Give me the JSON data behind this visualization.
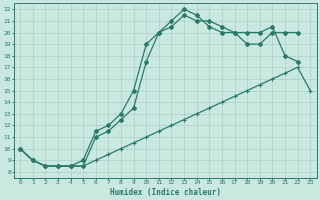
{
  "xlabel": "Humidex (Indice chaleur)",
  "background_color": "#c8e8e0",
  "grid_color": "#b0d4cc",
  "line_color": "#2a7a6a",
  "xlim": [
    -0.5,
    23.5
  ],
  "ylim": [
    7.5,
    22.5
  ],
  "xticks": [
    0,
    1,
    2,
    3,
    4,
    5,
    6,
    7,
    8,
    9,
    10,
    11,
    12,
    13,
    14,
    15,
    16,
    17,
    18,
    19,
    20,
    21,
    22,
    23
  ],
  "yticks": [
    8,
    9,
    10,
    11,
    12,
    13,
    14,
    15,
    16,
    17,
    18,
    19,
    20,
    21,
    22
  ],
  "line1_x": [
    0,
    1,
    2,
    3,
    4,
    5,
    6,
    7,
    8,
    9,
    10,
    11,
    12,
    13,
    14,
    15,
    16,
    17,
    18,
    19,
    20,
    21,
    22,
    23
  ],
  "line1_y": [
    10,
    9,
    8.5,
    8.5,
    8.5,
    8.5,
    9,
    9.5,
    10,
    10.5,
    11,
    11.5,
    12,
    12.5,
    13,
    13.5,
    14,
    14.5,
    15,
    15.5,
    16,
    16.5,
    17,
    15
  ],
  "line2_x": [
    0,
    1,
    2,
    3,
    4,
    5,
    6,
    7,
    8,
    9,
    10,
    11,
    12,
    13,
    14,
    15,
    16,
    17,
    18,
    19,
    20,
    21,
    22
  ],
  "line2_y": [
    10,
    9,
    8.5,
    8.5,
    8.5,
    8.5,
    11,
    11.5,
    12.5,
    13.5,
    17.5,
    20,
    20.5,
    21.5,
    21,
    21,
    20.5,
    20,
    19,
    19,
    20,
    20,
    20
  ],
  "line3_x": [
    0,
    1,
    2,
    3,
    4,
    5,
    6,
    7,
    8,
    9,
    10,
    11,
    12,
    13,
    14,
    15,
    16,
    17,
    18,
    19,
    20,
    21,
    22
  ],
  "line3_y": [
    10,
    9,
    8.5,
    8.5,
    8.5,
    9,
    11.5,
    12,
    13,
    15,
    19,
    20,
    21,
    22,
    21.5,
    20.5,
    20,
    20,
    20,
    20,
    20.5,
    18,
    17.5
  ]
}
